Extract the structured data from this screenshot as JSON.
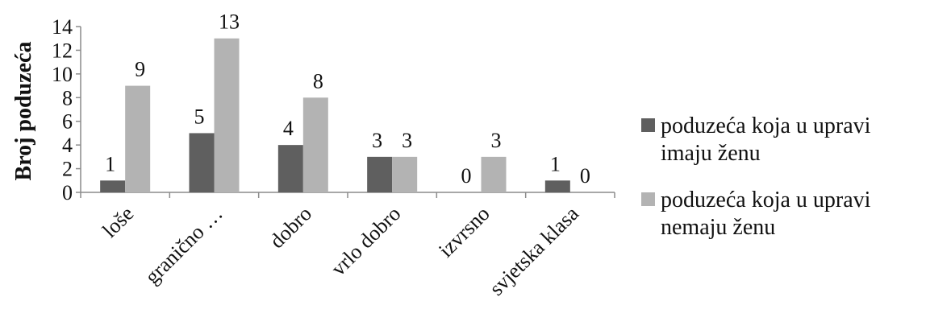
{
  "chart_data": {
    "type": "bar",
    "title": "",
    "xlabel": "",
    "ylabel": "Broj poduzeća",
    "ylim": [
      0,
      14
    ],
    "yticks": [
      0,
      2,
      4,
      6,
      8,
      10,
      12,
      14
    ],
    "grid": false,
    "legend_position": "right",
    "categories": [
      "loše",
      "granično …",
      "dobro",
      "vrlo dobro",
      "izvrsno",
      "svjetska klasa"
    ],
    "series": [
      {
        "name": "poduzeća koja u upravi imaju ženu",
        "legend_lines": [
          "poduzeća koja u upravi",
          "imaju ženu"
        ],
        "values": [
          1,
          5,
          4,
          3,
          0,
          1
        ],
        "color": "#5f5f5f"
      },
      {
        "name": "poduzeća koja u upravi nemaju ženu",
        "legend_lines": [
          "poduzeća koja u upravi",
          "nemaju ženu"
        ],
        "values": [
          9,
          13,
          8,
          3,
          3,
          0
        ],
        "color": "#b3b3b3"
      }
    ]
  }
}
